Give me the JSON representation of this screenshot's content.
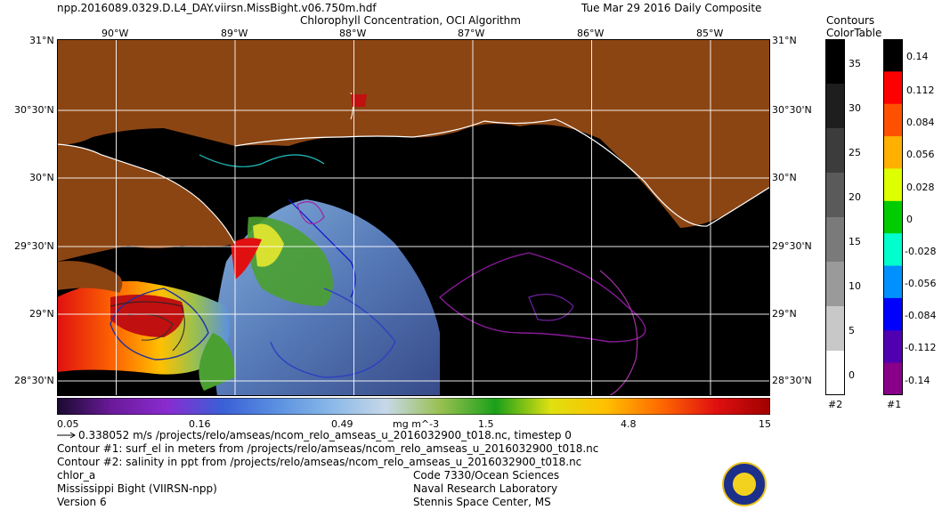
{
  "header": {
    "filename": "npp.2016089.0329.D.L4_DAY.viirsn.MissBight.v06.750m.hdf",
    "title": "Chlorophyll Concentration, OCI Algorithm",
    "date": "Tue Mar 29 2016 Daily Composite"
  },
  "map": {
    "lon_labels": [
      "90°W",
      "89°W",
      "88°W",
      "87°W",
      "86°W",
      "85°W"
    ],
    "lat_labels": [
      "31°N",
      "30°30'N",
      "30°N",
      "29°30'N",
      "29°N",
      "28°30'N"
    ],
    "colors": {
      "land": "#8b4513",
      "ocean_nodata": "#000000",
      "grid": "#ffffff"
    }
  },
  "colorbar": {
    "ticks": [
      "0.05",
      "0.16",
      "0.49",
      "1.5",
      "4.8",
      "15"
    ],
    "units": "mg m^-3",
    "colors": [
      "#1a0a2e",
      "#6a1a9a",
      "#8a2bd0",
      "#3a5fd6",
      "#5a90e0",
      "#8ab8e8",
      "#c8d8e8",
      "#98c050",
      "#1aa01a",
      "#dfe010",
      "#ffc000",
      "#ff6a00",
      "#e01010",
      "#a00000"
    ]
  },
  "contours_colorbar": {
    "header_line1": "Contours",
    "header_line2": "ColorTable",
    "labels": [
      "35",
      "30",
      "25",
      "20",
      "15",
      "10",
      "5",
      "0"
    ],
    "footer": "#2",
    "colors": [
      "#000000",
      "#1e1e1e",
      "#3c3c3c",
      "#5a5a5a",
      "#7a7a7a",
      "#9a9a9a",
      "#c8c8c8",
      "#ffffff"
    ]
  },
  "colortable": {
    "labels": [
      "0.14",
      "0.112",
      "0.084",
      "0.056",
      "0.028",
      "0",
      "-0.028",
      "-0.056",
      "-0.084",
      "-0.112",
      "-0.14"
    ],
    "footer": "#1",
    "colors": [
      "#000000",
      "#ff0000",
      "#ff5000",
      "#ffb000",
      "#ddff00",
      "#00cc00",
      "#00ffcc",
      "#0090ff",
      "#0000ff",
      "#5000b0",
      "#880088"
    ]
  },
  "footer": {
    "vector_info": "0.338052 m/s /projects/relo/amseas/ncom_relo_amseas_u_2016032900_t018.nc, timestep 0",
    "contour1": "Contour #1: surf_el in meters from /projects/relo/amseas/ncom_relo_amseas_u_2016032900_t018.nc",
    "contour2": "Contour #2: salinity in ppt from /projects/relo/amseas/ncom_relo_amseas_u_2016032900_t018.nc",
    "product": "chlor_a",
    "region": "Mississippi Bight (VIIRSN-npp)",
    "version": "Version 6",
    "org_code": "Code 7330/Ocean Sciences",
    "org_name": "Naval Research Laboratory",
    "org_location": "Stennis Space Center, MS"
  }
}
